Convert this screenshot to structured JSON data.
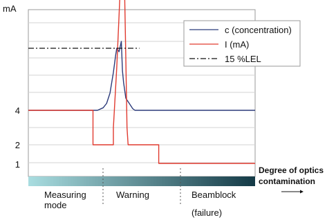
{
  "chart_data": {
    "type": "line",
    "ylabel": "mA",
    "y_ticks": [
      "4",
      "2",
      "1"
    ],
    "series": [
      {
        "name": "c (concentration)",
        "color": "#2b3a7a",
        "style": "solid",
        "points": [
          [
            0.0,
            4.0
          ],
          [
            0.27,
            4.0
          ],
          [
            0.305,
            4.0
          ],
          [
            0.33,
            4.15
          ],
          [
            0.345,
            4.4
          ],
          [
            0.36,
            5.0
          ],
          [
            0.375,
            6.2
          ],
          [
            0.385,
            7.2
          ],
          [
            0.39,
            7.6
          ],
          [
            0.4,
            7.4
          ],
          [
            0.41,
            8.0
          ],
          [
            0.415,
            6.3
          ],
          [
            0.42,
            5.6
          ],
          [
            0.43,
            4.7
          ],
          [
            0.445,
            4.4
          ],
          [
            0.46,
            4.1
          ],
          [
            0.47,
            4.0
          ],
          [
            0.5,
            4.0
          ],
          [
            1.0,
            4.0
          ]
        ]
      },
      {
        "name": "I (mA)",
        "color": "#e03a2f",
        "style": "solid",
        "points": [
          [
            0.0,
            4.0
          ],
          [
            0.285,
            4.0
          ],
          [
            0.285,
            2.0
          ],
          [
            0.375,
            2.0
          ],
          [
            0.375,
            3.0
          ],
          [
            0.39,
            6.5
          ],
          [
            0.4,
            9.5
          ],
          [
            0.405,
            11.0
          ],
          [
            0.41,
            11.5
          ],
          [
            0.42,
            11.5
          ],
          [
            0.425,
            10.5
          ],
          [
            0.43,
            7.0
          ],
          [
            0.435,
            3.0
          ],
          [
            0.44,
            2.0
          ],
          [
            0.575,
            2.0
          ],
          [
            0.575,
            1.0
          ],
          [
            1.0,
            1.0
          ]
        ]
      },
      {
        "name": "15 %LEL",
        "color": "#111111",
        "style": "dashdot",
        "points": [
          [
            0.0,
            7.6
          ],
          [
            0.49,
            7.6
          ]
        ]
      }
    ],
    "legend_placement": "top-right",
    "gradient_colors": [
      "#a9dde0",
      "#143a46"
    ],
    "x_caption": "Degree of optics contamination",
    "regions": [
      {
        "label_lines": [
          "Measuring",
          "mode"
        ]
      },
      {
        "label_lines": [
          "Warning"
        ]
      },
      {
        "label_lines": [
          "Beamblock",
          "(failure)"
        ]
      }
    ]
  }
}
